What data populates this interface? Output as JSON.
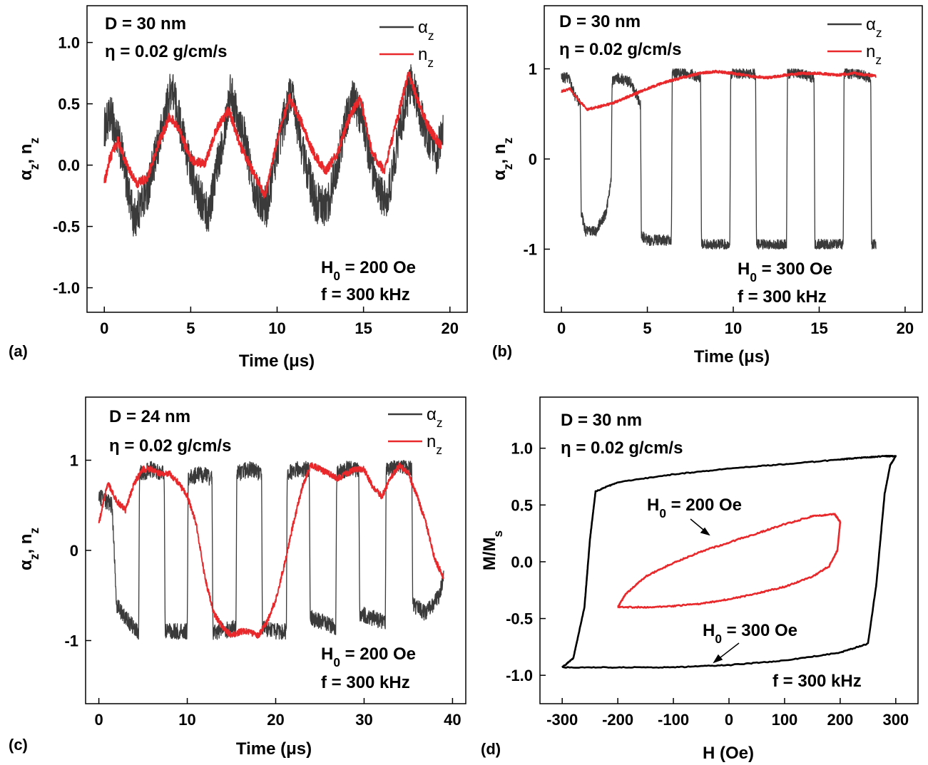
{
  "chart_data": [
    {
      "id": "a",
      "type": "line",
      "panel_label": "(a)",
      "xlabel": "Time  (μs)",
      "ylabel": "αz, nz",
      "xlim": [
        -1,
        21
      ],
      "ylim": [
        -1.2,
        1.3
      ],
      "xticks": [
        0,
        5,
        10,
        15,
        20
      ],
      "yticks": [
        -1.0,
        -0.5,
        0.0,
        0.5,
        1.0
      ],
      "ytick_labels": [
        "-1.0",
        "-0.5",
        "0.0",
        "0.5",
        "1.0"
      ],
      "annotations": [
        "D = 30 nm",
        "η = 0.02 g/cm/s",
        "H0 = 200 Oe",
        "f = 300 kHz"
      ],
      "legend": [
        {
          "name": "αz",
          "color": "#3a3a3a"
        },
        {
          "name": "nz",
          "color": "#e8282b"
        }
      ],
      "series": [
        {
          "name": "αz",
          "color": "#3a3a3a",
          "kind": "noisy",
          "noise": 0.17,
          "x": [
            0,
            0.4,
            1.0,
            1.7,
            2.5,
            3.2,
            3.9,
            4.6,
            5.3,
            6.0,
            6.7,
            7.3,
            8.0,
            8.7,
            9.4,
            10.1,
            10.8,
            11.5,
            12.2,
            12.9,
            13.6,
            14.3,
            15.0,
            15.7,
            16.4,
            17.1,
            17.8,
            18.5,
            19.2,
            19.6
          ],
          "y": [
            0.3,
            0.4,
            0.1,
            -0.45,
            -0.2,
            0.2,
            0.65,
            0.2,
            -0.2,
            -0.4,
            0.1,
            0.6,
            0.3,
            -0.2,
            -0.35,
            0.2,
            0.6,
            0.1,
            -0.3,
            -0.35,
            0.1,
            0.55,
            0.35,
            -0.2,
            -0.3,
            0.3,
            0.7,
            0.3,
            0.05,
            0.3
          ]
        },
        {
          "name": "nz",
          "color": "#e8282b",
          "kind": "noisy",
          "noise": 0.04,
          "x": [
            0,
            0.3,
            0.8,
            1.3,
            1.9,
            2.5,
            3.2,
            3.8,
            4.3,
            5.0,
            5.8,
            6.5,
            7.2,
            7.9,
            8.6,
            9.3,
            10.0,
            10.7,
            11.4,
            12.1,
            12.8,
            13.5,
            14.2,
            14.8,
            15.5,
            16.2,
            16.9,
            17.6,
            18.2,
            18.8,
            19.5
          ],
          "y": [
            -0.15,
            0.05,
            0.2,
            0.0,
            -0.15,
            -0.1,
            0.2,
            0.4,
            0.3,
            0.05,
            0.0,
            0.3,
            0.45,
            0.15,
            -0.05,
            -0.25,
            0.2,
            0.55,
            0.35,
            0.1,
            -0.05,
            0.1,
            0.4,
            0.55,
            0.1,
            -0.05,
            0.35,
            0.75,
            0.5,
            0.3,
            0.15
          ]
        }
      ]
    },
    {
      "id": "b",
      "type": "line",
      "panel_label": "(b)",
      "xlabel": "Time  (μs)",
      "ylabel": "αz, nz",
      "xlim": [
        -1,
        21
      ],
      "ylim": [
        -1.7,
        1.7
      ],
      "xticks": [
        0,
        5,
        10,
        15,
        20
      ],
      "yticks": [
        -1,
        0,
        1
      ],
      "ytick_labels": [
        "-1",
        "0",
        "1"
      ],
      "annotations": [
        "D = 30 nm",
        "η = 0.02 g/cm/s",
        "H0 = 300 Oe",
        "f = 300 kHz"
      ],
      "legend": [
        {
          "name": "αz",
          "color": "#3a3a3a"
        },
        {
          "name": "nz",
          "color": "#e8282b"
        }
      ],
      "series": [
        {
          "name": "αz",
          "color": "#3a3a3a",
          "kind": "noisy",
          "noise": 0.06,
          "x": [
            0,
            0.4,
            0.8,
            1.1,
            1.15,
            1.4,
            2.0,
            2.6,
            2.9,
            2.95,
            3.3,
            4.0,
            4.4,
            4.6,
            4.65,
            5.0,
            6.0,
            6.4,
            6.45,
            7.5,
            8.0,
            8.1,
            8.15,
            9.0,
            9.7,
            9.8,
            9.85,
            10.6,
            11.2,
            11.3,
            11.35,
            12.2,
            13.0,
            13.1,
            13.15,
            14.0,
            14.6,
            14.7,
            14.75,
            15.6,
            16.3,
            16.4,
            16.45,
            17.2,
            17.9,
            18.0,
            18.05,
            18.3
          ],
          "y": [
            0.9,
            0.9,
            0.7,
            0.6,
            -0.6,
            -0.8,
            -0.8,
            -0.6,
            -0.2,
            0.85,
            0.9,
            0.85,
            0.7,
            0.6,
            -0.85,
            -0.9,
            -0.9,
            -0.9,
            0.95,
            0.95,
            0.9,
            0.9,
            -0.95,
            -0.95,
            -0.95,
            -0.95,
            0.95,
            0.95,
            0.95,
            0.9,
            -0.95,
            -0.95,
            -0.95,
            -0.95,
            0.95,
            0.95,
            0.9,
            0.9,
            -0.95,
            -0.95,
            -0.95,
            -0.95,
            0.95,
            0.95,
            0.9,
            0.9,
            -0.95,
            -0.95
          ]
        },
        {
          "name": "nz",
          "color": "#e8282b",
          "kind": "noisy",
          "noise": 0.015,
          "x": [
            0,
            0.5,
            1.0,
            1.5,
            2.2,
            3.0,
            4.0,
            5.0,
            6.0,
            7.0,
            8.0,
            9.0,
            10.0,
            11.0,
            12.0,
            13.0,
            14.0,
            15.0,
            16.0,
            17.0,
            18.3
          ],
          "y": [
            0.75,
            0.78,
            0.65,
            0.55,
            0.58,
            0.62,
            0.7,
            0.78,
            0.85,
            0.9,
            0.95,
            0.97,
            0.95,
            0.92,
            0.9,
            0.93,
            0.95,
            0.95,
            0.93,
            0.95,
            0.92
          ]
        }
      ]
    },
    {
      "id": "c",
      "type": "line",
      "panel_label": "(c)",
      "xlabel": "Time  (μs)",
      "ylabel": "αz, nz",
      "xlim": [
        -1.5,
        41.5
      ],
      "ylim": [
        -1.7,
        1.7
      ],
      "xticks": [
        0,
        10,
        20,
        30,
        40
      ],
      "yticks": [
        -1,
        0,
        1
      ],
      "ytick_labels": [
        "-1",
        "0",
        "1"
      ],
      "annotations": [
        "D = 24 nm",
        "η = 0.02 g/cm/s",
        "H0 = 200 Oe",
        "f = 300 kHz"
      ],
      "legend": [
        {
          "name": "αz",
          "color": "#3a3a3a"
        },
        {
          "name": "nz",
          "color": "#e8282b"
        }
      ],
      "series": [
        {
          "name": "αz",
          "color": "#3a3a3a",
          "kind": "noisy",
          "noise": 0.09,
          "x": [
            0,
            1.5,
            2.0,
            3.0,
            4.5,
            4.6,
            6.0,
            7.4,
            7.5,
            9.0,
            10.0,
            10.1,
            11.5,
            12.8,
            12.9,
            14.0,
            15.5,
            15.6,
            17.0,
            18.4,
            18.5,
            20.0,
            21.2,
            21.3,
            22.5,
            23.8,
            23.9,
            25.5,
            26.8,
            26.9,
            28.0,
            29.4,
            29.5,
            31.0,
            32.4,
            32.5,
            34.0,
            35.4,
            35.5,
            37.0,
            38.5,
            39.0
          ],
          "y": [
            0.6,
            0.5,
            -0.6,
            -0.75,
            -0.9,
            0.85,
            0.9,
            0.85,
            -0.9,
            -0.9,
            -0.9,
            0.8,
            0.85,
            0.8,
            -0.9,
            -0.9,
            -0.85,
            0.85,
            0.9,
            0.85,
            -0.85,
            -0.9,
            -0.9,
            0.85,
            0.9,
            0.9,
            -0.75,
            -0.8,
            -0.85,
            0.85,
            0.9,
            0.9,
            -0.7,
            -0.75,
            -0.8,
            0.9,
            0.95,
            0.9,
            -0.6,
            -0.7,
            -0.5,
            -0.3
          ]
        },
        {
          "name": "nz",
          "color": "#e8282b",
          "kind": "noisy",
          "noise": 0.035,
          "x": [
            0,
            1.0,
            2.0,
            3.0,
            4.0,
            5.0,
            6.0,
            7.0,
            8.0,
            9.0,
            10.0,
            11.0,
            12.0,
            13.0,
            14.0,
            15.0,
            16.0,
            17.0,
            18.0,
            19.0,
            20.0,
            21.0,
            22.0,
            23.0,
            24.0,
            25.0,
            26.0,
            27.0,
            28.0,
            29.0,
            30.0,
            31.0,
            32.0,
            33.0,
            34.0,
            35.0,
            36.0,
            37.0,
            38.0,
            39.0
          ],
          "y": [
            0.3,
            0.75,
            0.55,
            0.45,
            0.75,
            0.9,
            0.9,
            0.85,
            0.85,
            0.75,
            0.6,
            0.3,
            -0.3,
            -0.7,
            -0.85,
            -0.95,
            -0.9,
            -0.9,
            -0.95,
            -0.8,
            -0.55,
            -0.15,
            0.3,
            0.7,
            0.95,
            0.9,
            0.85,
            0.8,
            0.85,
            0.9,
            0.9,
            0.7,
            0.6,
            0.8,
            0.95,
            0.85,
            0.6,
            0.3,
            -0.1,
            -0.3
          ]
        }
      ]
    },
    {
      "id": "d",
      "type": "line",
      "panel_label": "(d)",
      "xlabel": "H  (Oe)",
      "ylabel": "M/Ms",
      "xlim": [
        -340,
        340
      ],
      "ylim": [
        -1.25,
        1.45
      ],
      "xticks": [
        -300,
        -200,
        -100,
        0,
        100,
        200,
        300
      ],
      "yticks": [
        -1.0,
        -0.5,
        0.0,
        0.5,
        1.0
      ],
      "ytick_labels": [
        "-1.0",
        "-0.5",
        "0.0",
        "0.5",
        "1.0"
      ],
      "annotations": [
        "D = 30 nm",
        "η = 0.02 g/cm/s",
        "H0 = 200 Oe",
        "H0 = 300 Oe",
        "f = 300 kHz"
      ],
      "series": [
        {
          "name": "H0 = 300 Oe",
          "color": "#000000",
          "kind": "loop",
          "noise": 0.004,
          "x": [
            -300,
            -200,
            -100,
            0,
            100,
            200,
            250,
            265,
            280,
            290,
            300,
            280,
            250,
            220,
            200,
            100,
            0,
            -100,
            -200,
            -240,
            -250,
            -260,
            -280,
            -300
          ],
          "y": [
            -0.93,
            -0.93,
            -0.93,
            -0.91,
            -0.87,
            -0.8,
            -0.72,
            -0.2,
            0.6,
            0.85,
            0.93,
            0.93,
            0.92,
            0.91,
            0.9,
            0.86,
            0.82,
            0.77,
            0.7,
            0.62,
            0.2,
            -0.4,
            -0.85,
            -0.93
          ]
        },
        {
          "name": "H0 = 200 Oe",
          "color": "#e8282b",
          "kind": "loop",
          "noise": 0.006,
          "x": [
            -200,
            -150,
            -100,
            -50,
            0,
            50,
            100,
            150,
            180,
            195,
            200,
            190,
            150,
            100,
            50,
            0,
            -50,
            -100,
            -150,
            -185,
            -200
          ],
          "y": [
            -0.4,
            -0.4,
            -0.39,
            -0.37,
            -0.33,
            -0.28,
            -0.22,
            -0.13,
            -0.04,
            0.1,
            0.35,
            0.42,
            0.4,
            0.33,
            0.25,
            0.17,
            0.09,
            -0.01,
            -0.13,
            -0.28,
            -0.4
          ]
        }
      ]
    }
  ]
}
